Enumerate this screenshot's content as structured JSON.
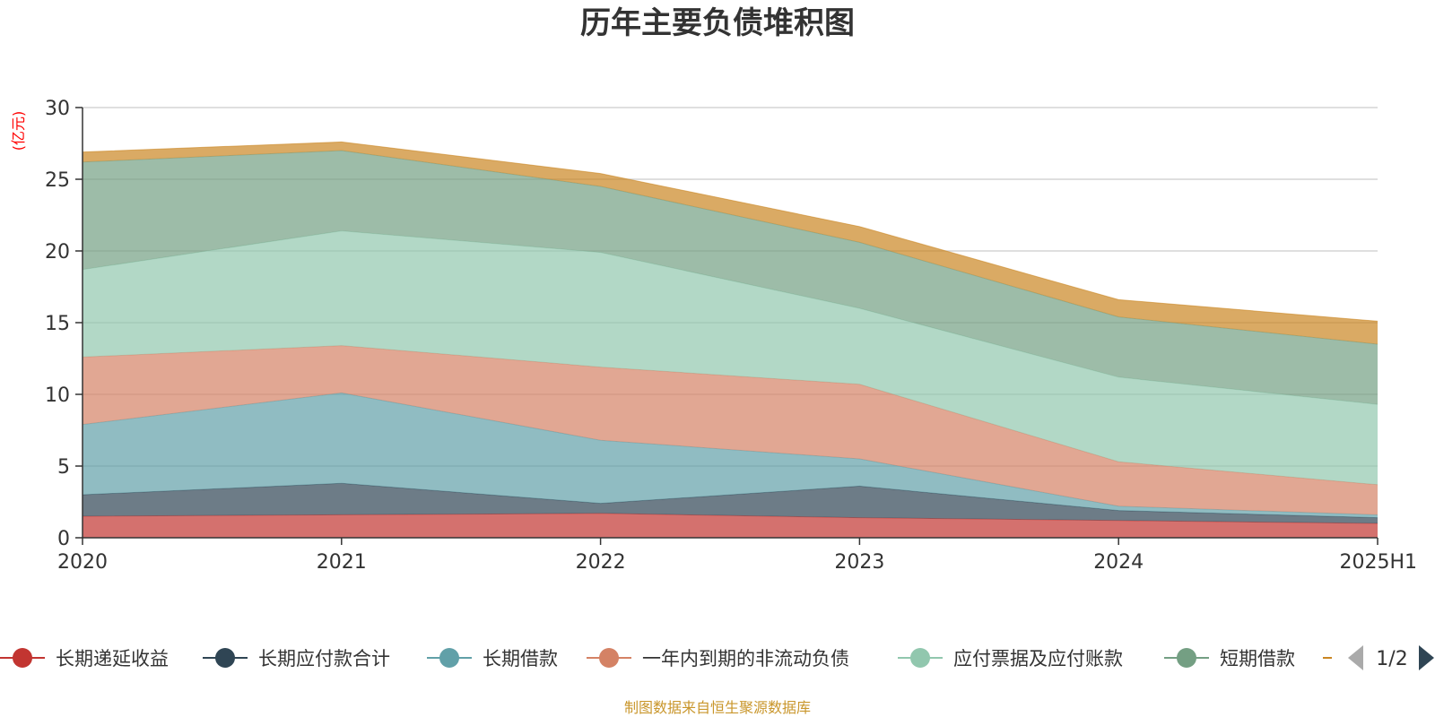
{
  "chart_data": {
    "type": "area",
    "stacked": true,
    "title": "历年主要负债堆积图",
    "unit_label": "(亿元)",
    "categories": [
      "2020",
      "2021",
      "2022",
      "2023",
      "2024",
      "2025H1"
    ],
    "ylim": [
      0,
      30
    ],
    "yticks": [
      0,
      5,
      10,
      15,
      20,
      25,
      30
    ],
    "grid": true,
    "legend_position": "bottom",
    "series": [
      {
        "name": "长期递延收益",
        "color": "#c23531",
        "values": [
          1.5,
          1.6,
          1.7,
          1.4,
          1.2,
          1.0
        ]
      },
      {
        "name": "长期应付款合计",
        "color": "#2f4554",
        "values": [
          1.5,
          2.2,
          0.7,
          2.2,
          0.7,
          0.4
        ]
      },
      {
        "name": "长期借款",
        "color": "#61a0a8",
        "values": [
          4.9,
          6.3,
          4.4,
          1.9,
          0.3,
          0.2
        ]
      },
      {
        "name": "一年内到期的非流动负债",
        "color": "#d48265",
        "values": [
          4.7,
          3.3,
          5.1,
          5.2,
          3.1,
          2.1
        ]
      },
      {
        "name": "应付票据及应付账款",
        "color": "#91c7ae",
        "values": [
          6.1,
          8.0,
          8.0,
          5.3,
          5.9,
          5.6
        ]
      },
      {
        "name": "短期借款",
        "color": "#749f83",
        "values": [
          7.5,
          5.6,
          4.6,
          4.6,
          4.2,
          4.2
        ]
      },
      {
        "name": "",
        "color": "#ca8622",
        "values": [
          0.7,
          0.6,
          0.9,
          1.1,
          1.2,
          1.6
        ]
      }
    ]
  },
  "legend_pager": {
    "text": "1/2"
  },
  "source_note": "制图数据来自恒生聚源数据库",
  "colors": {
    "unit_label": "#ff0000",
    "source_note": "#c9962b",
    "grid": "#cccccc",
    "axis": "#333333"
  }
}
